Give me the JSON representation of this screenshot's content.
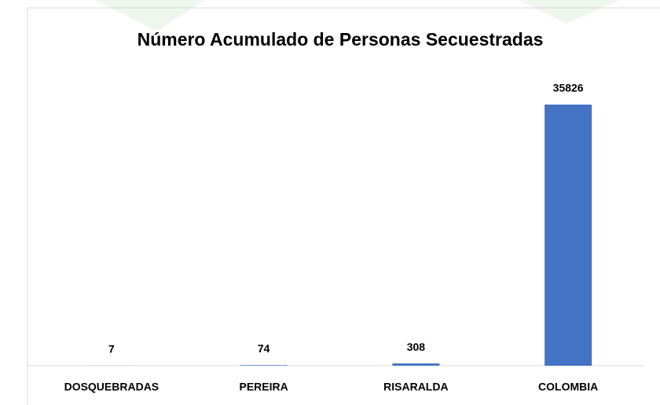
{
  "chart_data": {
    "type": "bar",
    "title": "Número Acumulado de Personas Secuestradas",
    "categories": [
      "DOSQUEBRADAS",
      "PEREIRA",
      "RISARALDA",
      "COLOMBIA"
    ],
    "values": [
      7,
      74,
      308,
      35826
    ],
    "color": "#4472c4"
  }
}
